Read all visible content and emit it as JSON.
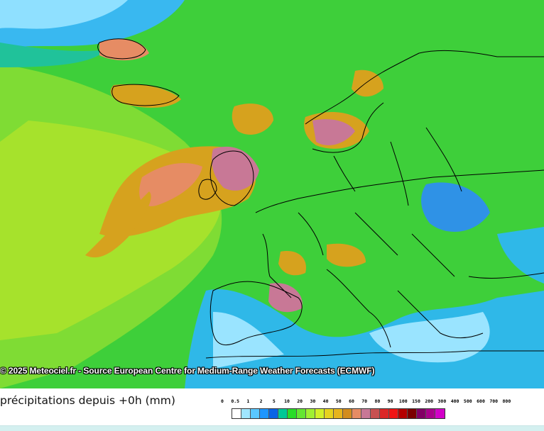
{
  "map": {
    "credit": "© 2025 Meteociel.fr - Source European Centre for Medium-Range Weather Forecasts (ECMWF)"
  },
  "legend": {
    "title": "précipitations depuis +0h (mm)",
    "ticks": [
      "0",
      "0.5",
      "1",
      "2",
      "5",
      "10",
      "20",
      "30",
      "40",
      "50",
      "60",
      "70",
      "80",
      "90",
      "100",
      "150",
      "200",
      "300",
      "400",
      "500",
      "600",
      "700",
      "800"
    ],
    "colors": [
      "#ffffff",
      "#a0e6ff",
      "#5ac8ff",
      "#1e96ff",
      "#0a64e6",
      "#00c896",
      "#28dc28",
      "#64e632",
      "#a0f032",
      "#d2f028",
      "#e6d21e",
      "#e6b41e",
      "#d28c1e",
      "#e68c64",
      "#c87896",
      "#c85050",
      "#dc2828",
      "#f01414",
      "#b40000",
      "#7a0000",
      "#820064",
      "#aa008c",
      "#d200c8"
    ]
  }
}
